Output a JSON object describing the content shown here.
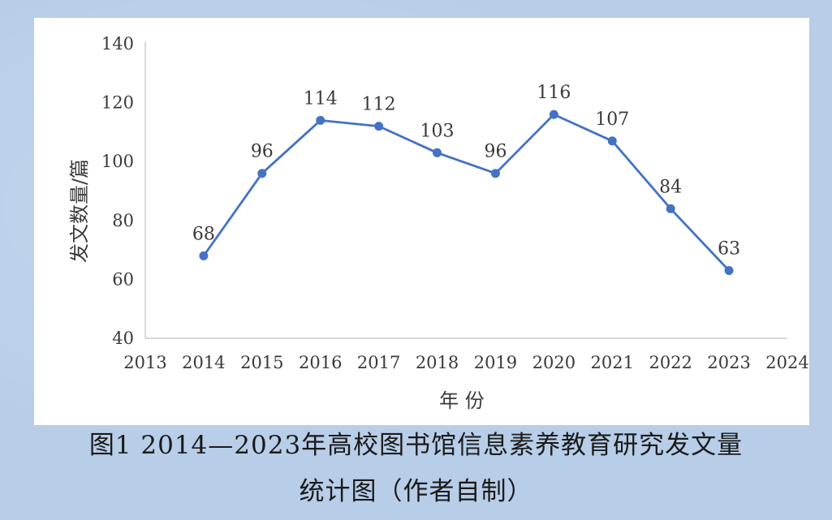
{
  "chart_data": {
    "type": "line",
    "x": [
      2014,
      2015,
      2016,
      2017,
      2018,
      2019,
      2020,
      2021,
      2022,
      2023
    ],
    "series": [
      {
        "values": [
          68,
          96,
          114,
          112,
          103,
          96,
          116,
          107,
          84,
          63
        ]
      }
    ],
    "data_labels": [
      "68",
      "96",
      "114",
      "112",
      "103",
      "96",
      "116",
      "107",
      "84",
      "63"
    ],
    "xlabel": "年 份",
    "ylabel": "发文数量/篇",
    "xlim": [
      2013,
      2024
    ],
    "ylim": [
      40,
      140
    ],
    "x_ticks": [
      "2013",
      "2014",
      "2015",
      "2016",
      "2017",
      "2018",
      "2019",
      "2020",
      "2021",
      "2022",
      "2023",
      "2024"
    ],
    "y_ticks": [
      "40",
      "60",
      "80",
      "100",
      "120",
      "140"
    ],
    "grid": false,
    "legend": "none",
    "line_color": "#4472c4"
  },
  "caption": {
    "line1": "图1 2014—2023年高校图书馆信息素养教育研究发文量",
    "line2": "统计图（作者自制）"
  }
}
